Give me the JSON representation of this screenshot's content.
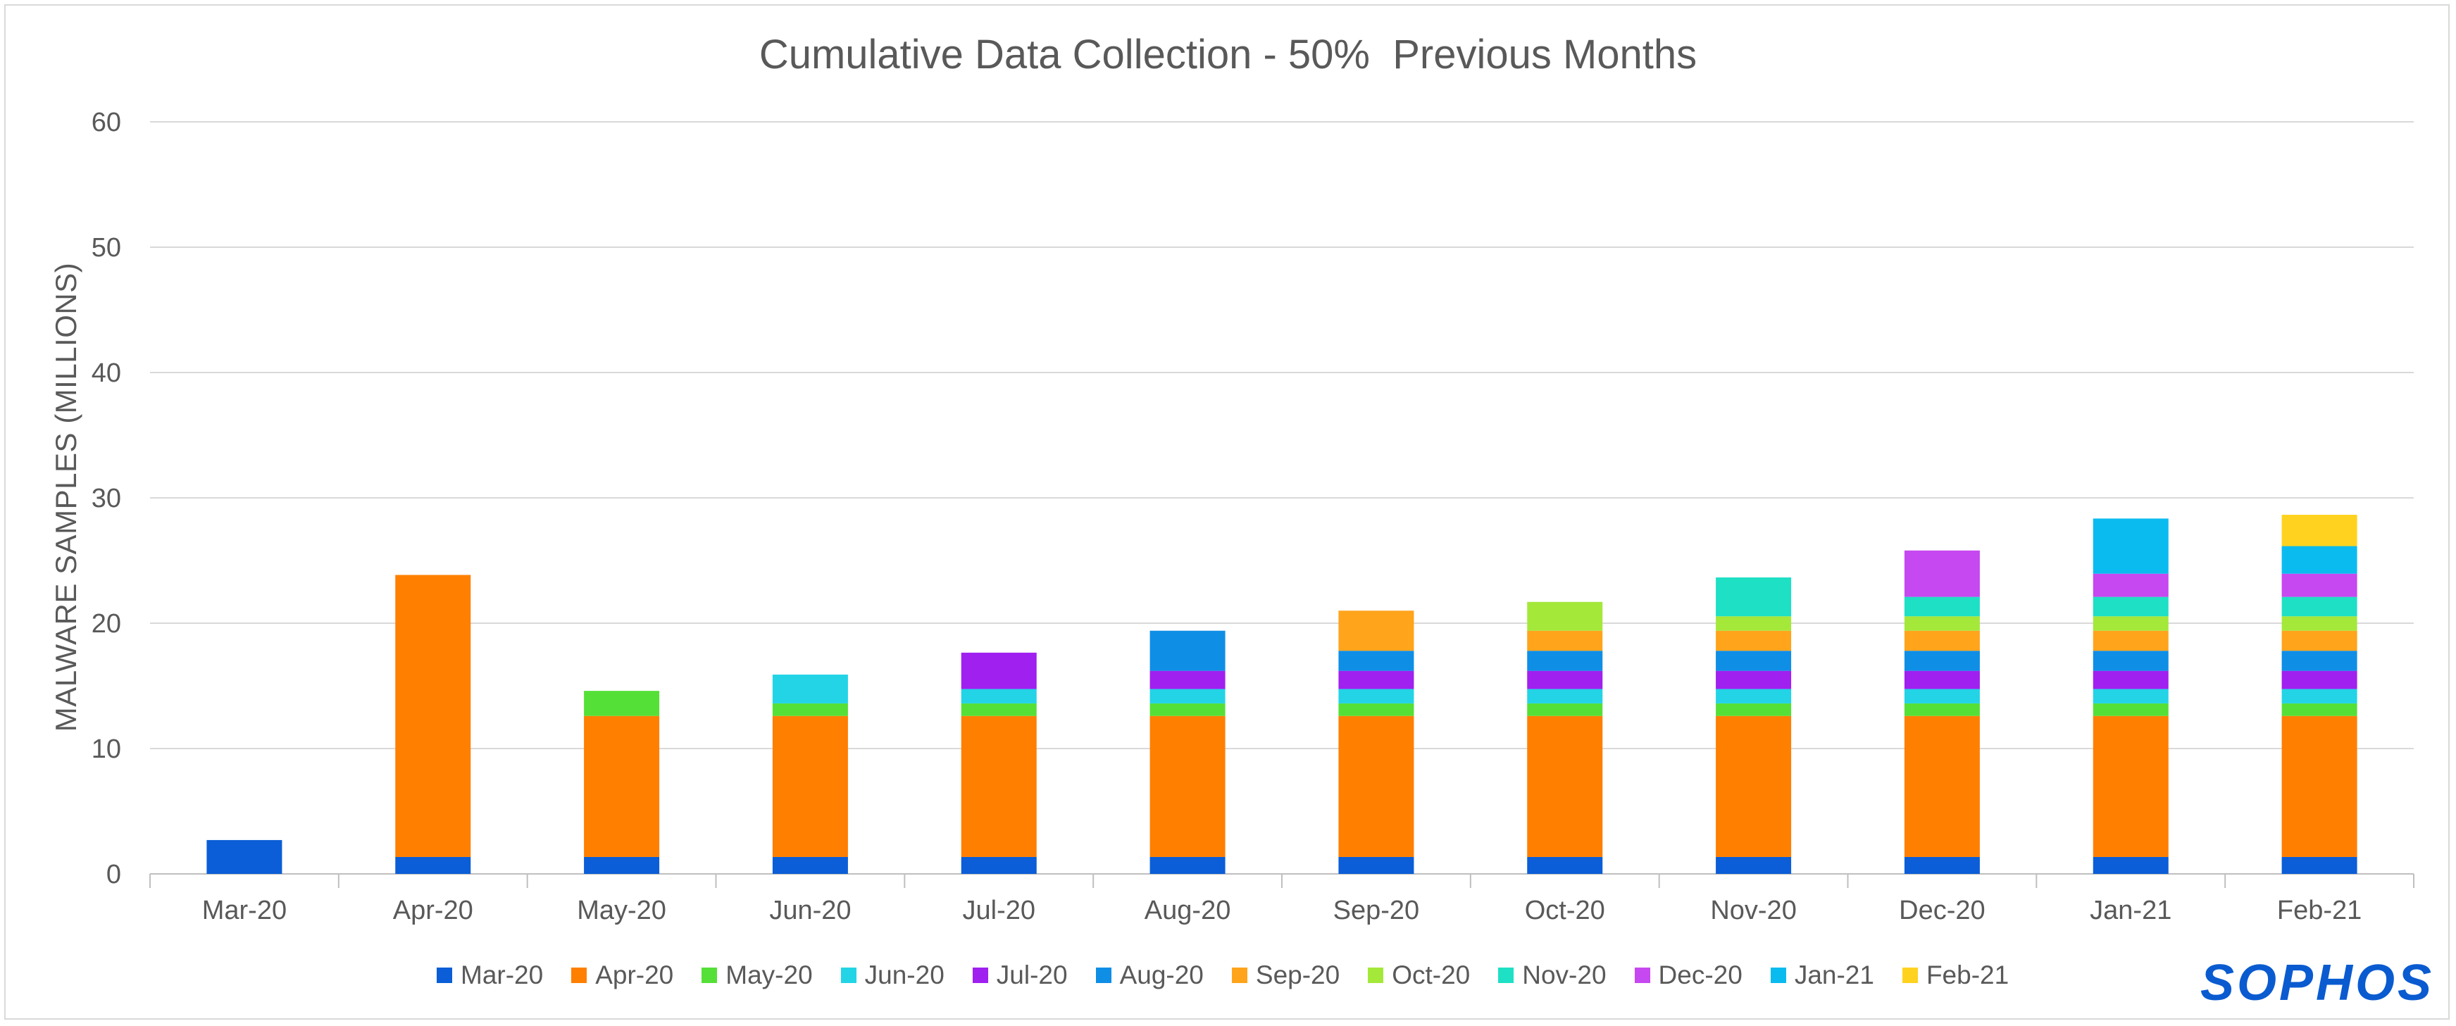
{
  "chart_data": {
    "type": "bar",
    "stacked": true,
    "title": "Cumulative Data Collection - 50%  Previous Months",
    "xlabel": "",
    "ylabel": "MALWARE SAMPLES (MILLIONS)",
    "ylim": [
      0,
      60
    ],
    "yticks": [
      "0",
      "10",
      "20",
      "30",
      "40",
      "50",
      "60"
    ],
    "grid": true,
    "legend_position": "bottom",
    "categories": [
      "Mar-20",
      "Apr-20",
      "May-20",
      "Jun-20",
      "Jul-20",
      "Aug-20",
      "Sep-20",
      "Oct-20",
      "Nov-20",
      "Dec-20",
      "Jan-21",
      "Feb-21"
    ],
    "series": [
      {
        "name": "Mar-20",
        "color": "#0b5ed7",
        "values": [
          2.7,
          1.35,
          1.35,
          1.35,
          1.35,
          1.35,
          1.35,
          1.35,
          1.35,
          1.35,
          1.35,
          1.35
        ]
      },
      {
        "name": "Apr-20",
        "color": "#ff7f00",
        "values": [
          0,
          22.5,
          11.25,
          11.25,
          11.25,
          11.25,
          11.25,
          11.25,
          11.25,
          11.25,
          11.25,
          11.25
        ]
      },
      {
        "name": "May-20",
        "color": "#55e037",
        "values": [
          0,
          0,
          2.0,
          1.0,
          1.0,
          1.0,
          1.0,
          1.0,
          1.0,
          1.0,
          1.0,
          1.0
        ]
      },
      {
        "name": "Jun-20",
        "color": "#22d4e6",
        "values": [
          0,
          0,
          0,
          2.3,
          1.15,
          1.15,
          1.15,
          1.15,
          1.15,
          1.15,
          1.15,
          1.15
        ]
      },
      {
        "name": "Jul-20",
        "color": "#a020f0",
        "values": [
          0,
          0,
          0,
          0,
          2.9,
          1.45,
          1.45,
          1.45,
          1.45,
          1.45,
          1.45,
          1.45
        ]
      },
      {
        "name": "Aug-20",
        "color": "#0f8ee6",
        "values": [
          0,
          0,
          0,
          0,
          0,
          3.2,
          1.6,
          1.6,
          1.6,
          1.6,
          1.6,
          1.6
        ]
      },
      {
        "name": "Sep-20",
        "color": "#ffa41b",
        "values": [
          0,
          0,
          0,
          0,
          0,
          0,
          3.2,
          1.6,
          1.6,
          1.6,
          1.6,
          1.6
        ]
      },
      {
        "name": "Oct-20",
        "color": "#a4e83a",
        "values": [
          0,
          0,
          0,
          0,
          0,
          0,
          0,
          2.3,
          1.15,
          1.15,
          1.15,
          1.15
        ]
      },
      {
        "name": "Nov-20",
        "color": "#1ee0c5",
        "values": [
          0,
          0,
          0,
          0,
          0,
          0,
          0,
          0,
          3.1,
          1.55,
          1.55,
          1.55
        ]
      },
      {
        "name": "Dec-20",
        "color": "#c648f0",
        "values": [
          0,
          0,
          0,
          0,
          0,
          0,
          0,
          0,
          0,
          3.7,
          1.85,
          1.85
        ]
      },
      {
        "name": "Jan-21",
        "color": "#0abbef",
        "values": [
          0,
          0,
          0,
          0,
          0,
          0,
          0,
          0,
          0,
          0,
          4.4,
          2.2
        ]
      },
      {
        "name": "Feb-21",
        "color": "#ffd21f",
        "values": [
          0,
          0,
          0,
          0,
          0,
          0,
          0,
          0,
          0,
          0,
          0,
          2.5
        ]
      }
    ]
  },
  "logo": {
    "text": "SOPHOS"
  }
}
